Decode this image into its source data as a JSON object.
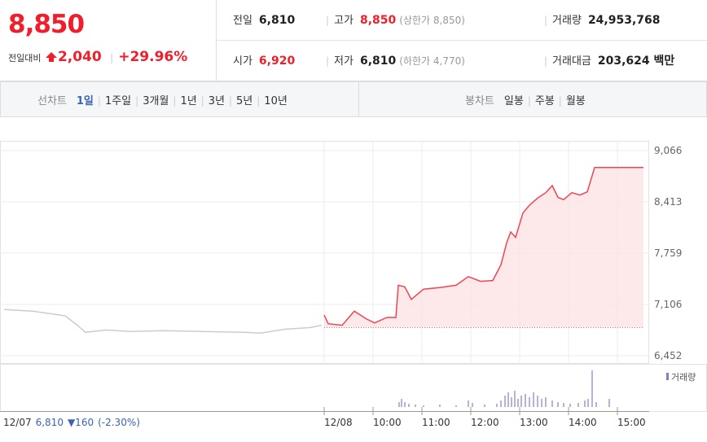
{
  "header": {
    "price": "8,850",
    "change_label": "전일대비",
    "change": "2,040",
    "change_rate": "+29.96%",
    "rows": [
      [
        {
          "label": "전일",
          "value": "6,810"
        },
        {
          "label": "고가",
          "value": "8,850",
          "note": "(상한가 8,850)"
        },
        {
          "label": "거래량",
          "value": "24,953,768"
        }
      ],
      [
        {
          "label": "시가",
          "value": "6,920"
        },
        {
          "label": "저가",
          "value": "6,810",
          "note": "(하한가 4,770)"
        },
        {
          "label": "거래대금",
          "value": "203,624 백만"
        }
      ]
    ]
  },
  "tabs": {
    "line_label": "선차트",
    "line_periods": [
      "1일",
      "1주일",
      "3개월",
      "1년",
      "3년",
      "5년",
      "10년"
    ],
    "candle_label": "봉차트",
    "candle_periods": [
      "일봉",
      "주봉",
      "월봉"
    ]
  },
  "footer": {
    "date": "12/07",
    "close": "6,810",
    "change": "▼160",
    "rate": "(-2.30%)"
  },
  "chart_data": {
    "type": "line",
    "xlim": [
      -393,
      392
    ],
    "xticks": [
      {
        "value": 0,
        "label": "12/08"
      },
      {
        "value": 60,
        "label": "10:00"
      },
      {
        "value": 120,
        "label": "11:00"
      },
      {
        "value": 180,
        "label": "12:00"
      },
      {
        "value": 240,
        "label": "13:00"
      },
      {
        "value": 300,
        "label": "14:00"
      },
      {
        "value": 360,
        "label": "15:00"
      }
    ],
    "ylim": [
      6452,
      9066
    ],
    "yticks": [
      {
        "value": 9066,
        "label": "9,066"
      },
      {
        "value": 8413,
        "label": "8,413"
      },
      {
        "value": 7759,
        "label": "7,759"
      },
      {
        "value": 7106,
        "label": "7,106"
      },
      {
        "value": 6452,
        "label": "6,452"
      }
    ],
    "baseline": 6810,
    "grid": true,
    "series": [
      {
        "color": "#cccccc",
        "x": [
          -393,
          -358,
          -338,
          -318,
          -303,
          -293,
          -268,
          -238,
          -198,
          -148,
          -98,
          -78,
          -48,
          -18,
          -3
        ],
        "values": [
          7040,
          7020,
          6990,
          6960,
          6840,
          6750,
          6780,
          6760,
          6770,
          6760,
          6750,
          6740,
          6790,
          6810,
          6840
        ]
      },
      {
        "color": "#f04452",
        "fill": "#fde3e5",
        "x": [
          0,
          5,
          22,
          37,
          52,
          62,
          77,
          88,
          91,
          99,
          107,
          122,
          142,
          162,
          177,
          192,
          207,
          217,
          224,
          229,
          235,
          244,
          252,
          262,
          272,
          280,
          287,
          294,
          304,
          314,
          323,
          332,
          392
        ],
        "values": [
          6970,
          6860,
          6840,
          7020,
          6920,
          6870,
          6940,
          6940,
          7350,
          7330,
          7170,
          7300,
          7320,
          7350,
          7460,
          7400,
          7410,
          7610,
          7890,
          8030,
          7960,
          8270,
          8370,
          8460,
          8530,
          8620,
          8470,
          8440,
          8530,
          8500,
          8540,
          8850,
          8850
        ]
      }
    ],
    "volume": {
      "name": "거래량",
      "color": "#8e7cc3",
      "ylim": [
        0,
        100
      ],
      "x": [
        92,
        95,
        99,
        104,
        112,
        122,
        142,
        162,
        177,
        182,
        197,
        212,
        217,
        222,
        226,
        230,
        234,
        238,
        242,
        247,
        252,
        257,
        262,
        267,
        272,
        280,
        287,
        294,
        302,
        312,
        320,
        324,
        329,
        334,
        350
      ],
      "values": [
        12,
        20,
        12,
        8,
        6,
        4,
        6,
        4,
        16,
        10,
        6,
        8,
        16,
        28,
        36,
        24,
        40,
        20,
        28,
        32,
        24,
        36,
        28,
        20,
        24,
        16,
        12,
        10,
        8,
        10,
        16,
        20,
        90,
        12,
        20
      ]
    }
  }
}
